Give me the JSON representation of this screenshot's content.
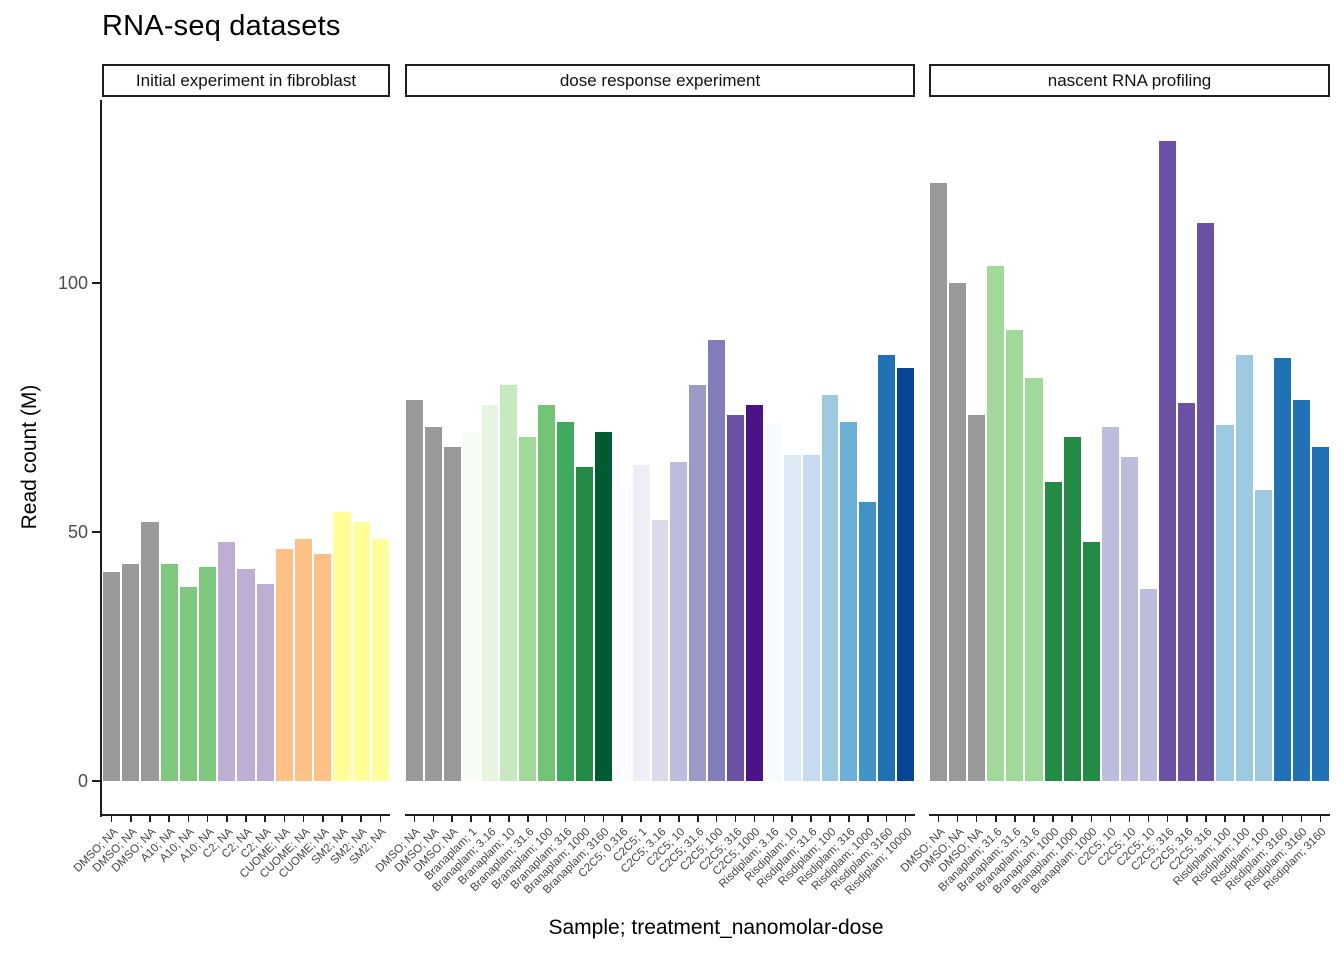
{
  "title": "RNA-seq datasets",
  "x_axis_title": "Sample; treatment_nanomolar-dose",
  "y_axis_title": "Read count (M)",
  "chart_data": {
    "type": "bar",
    "title": "RNA-seq datasets",
    "xlabel": "Sample; treatment_nanomolar-dose",
    "ylabel": "Read count (M)",
    "ylim": [
      0,
      137
    ],
    "yticks": [
      0,
      50,
      100
    ],
    "grid": "off",
    "legend": "none",
    "facets": true,
    "panels": [
      {
        "facet": "Initial experiment in fibroblast",
        "bars": [
          {
            "label": "DMSO; NA",
            "value": 42,
            "color": "#999999"
          },
          {
            "label": "DMSO; NA",
            "value": 43.5,
            "color": "#999999"
          },
          {
            "label": "DMSO; NA",
            "value": 52,
            "color": "#999999"
          },
          {
            "label": "A10; NA",
            "value": 43.5,
            "color": "#7fc97f"
          },
          {
            "label": "A10; NA",
            "value": 39,
            "color": "#7fc97f"
          },
          {
            "label": "A10; NA",
            "value": 43,
            "color": "#7fc97f"
          },
          {
            "label": "C2; NA",
            "value": 48,
            "color": "#beaed4"
          },
          {
            "label": "C2; NA",
            "value": 42.5,
            "color": "#beaed4"
          },
          {
            "label": "C2; NA",
            "value": 39.5,
            "color": "#beaed4"
          },
          {
            "label": "CUOME; NA",
            "value": 46.5,
            "color": "#fdc086"
          },
          {
            "label": "CUOME; NA",
            "value": 48.5,
            "color": "#fdc086"
          },
          {
            "label": "CUOME; NA",
            "value": 45.5,
            "color": "#fdc086"
          },
          {
            "label": "SM2; NA",
            "value": 54,
            "color": "#ffff99"
          },
          {
            "label": "SM2; NA",
            "value": 52,
            "color": "#ffff99"
          },
          {
            "label": "SM2; NA",
            "value": 48.5,
            "color": "#ffff99"
          }
        ]
      },
      {
        "facet": "dose response experiment",
        "bars": [
          {
            "label": "DMSO; NA",
            "value": 76.5,
            "color": "#999999"
          },
          {
            "label": "DMSO; NA",
            "value": 71,
            "color": "#999999"
          },
          {
            "label": "DMSO; NA",
            "value": 67,
            "color": "#999999"
          },
          {
            "label": "Branaplam; 1",
            "value": 70,
            "color": "#f7fcf5"
          },
          {
            "label": "Branaplam; 3.16",
            "value": 75.5,
            "color": "#e5f5e0"
          },
          {
            "label": "Branaplam; 10",
            "value": 79.5,
            "color": "#c7e9c0"
          },
          {
            "label": "Branaplam; 31.6",
            "value": 69,
            "color": "#a1d99b"
          },
          {
            "label": "Branaplam; 100",
            "value": 75.5,
            "color": "#74c476"
          },
          {
            "label": "Branaplam; 316",
            "value": 72,
            "color": "#41ab5d"
          },
          {
            "label": "Branaplam; 1000",
            "value": 63,
            "color": "#238b45"
          },
          {
            "label": "Branaplam; 3160",
            "value": 70,
            "color": "#005a32"
          },
          {
            "label": "C2C5; 0.316",
            "value": 59,
            "color": "#fcfbfd"
          },
          {
            "label": "C2C5; 1",
            "value": 63.5,
            "color": "#efedf5"
          },
          {
            "label": "C2C5; 3.16",
            "value": 52.5,
            "color": "#dadaeb"
          },
          {
            "label": "C2C5; 10",
            "value": 64,
            "color": "#bcbddc"
          },
          {
            "label": "C2C5; 31.6",
            "value": 79.5,
            "color": "#9e9ac8"
          },
          {
            "label": "C2C5; 100",
            "value": 88.5,
            "color": "#807dba"
          },
          {
            "label": "C2C5; 316",
            "value": 73.5,
            "color": "#6a51a3"
          },
          {
            "label": "C2C5; 1000",
            "value": 75.5,
            "color": "#4a1486"
          },
          {
            "label": "Risdiplam; 3.16",
            "value": 71.5,
            "color": "#f7fbff"
          },
          {
            "label": "Risdiplam; 10",
            "value": 65.5,
            "color": "#deebf7"
          },
          {
            "label": "Risdiplam; 31.6",
            "value": 65.5,
            "color": "#c6dbef"
          },
          {
            "label": "Risdiplam; 100",
            "value": 77.5,
            "color": "#9ecae1"
          },
          {
            "label": "Risdiplam; 316",
            "value": 72,
            "color": "#6baed6"
          },
          {
            "label": "Risdiplam; 1000",
            "value": 56,
            "color": "#4292c6"
          },
          {
            "label": "Risdiplam; 3160",
            "value": 85.5,
            "color": "#2171b5"
          },
          {
            "label": "Risdiplam; 10000",
            "value": 83,
            "color": "#084594"
          }
        ]
      },
      {
        "facet": "nascent RNA profiling",
        "bars": [
          {
            "label": "DMSO; NA",
            "value": 120,
            "color": "#999999"
          },
          {
            "label": "DMSO; NA",
            "value": 100,
            "color": "#999999"
          },
          {
            "label": "DMSO; NA",
            "value": 73.5,
            "color": "#999999"
          },
          {
            "label": "Branaplam; 31.6",
            "value": 103.5,
            "color": "#a1d99b"
          },
          {
            "label": "Branaplam; 31.6",
            "value": 90.5,
            "color": "#a1d99b"
          },
          {
            "label": "Branaplam; 31.6",
            "value": 81,
            "color": "#a1d99b"
          },
          {
            "label": "Branaplam; 1000",
            "value": 60,
            "color": "#238b45"
          },
          {
            "label": "Branaplam; 1000",
            "value": 69,
            "color": "#238b45"
          },
          {
            "label": "Branaplam; 1000",
            "value": 48,
            "color": "#238b45"
          },
          {
            "label": "C2C5; 10",
            "value": 71,
            "color": "#bcbddc"
          },
          {
            "label": "C2C5; 10",
            "value": 65,
            "color": "#bcbddc"
          },
          {
            "label": "C2C5; 10",
            "value": 38.5,
            "color": "#bcbddc"
          },
          {
            "label": "C2C5; 316",
            "value": 128.5,
            "color": "#6a51a3"
          },
          {
            "label": "C2C5; 316",
            "value": 76,
            "color": "#6a51a3"
          },
          {
            "label": "C2C5; 316",
            "value": 112,
            "color": "#6a51a3"
          },
          {
            "label": "Risdiplam; 100",
            "value": 71.5,
            "color": "#9ecae1"
          },
          {
            "label": "Risdiplam; 100",
            "value": 85.5,
            "color": "#9ecae1"
          },
          {
            "label": "Risdiplam; 100",
            "value": 58.5,
            "color": "#9ecae1"
          },
          {
            "label": "Risdiplam; 3160",
            "value": 85,
            "color": "#2171b5"
          },
          {
            "label": "Risdiplam; 3160",
            "value": 76.5,
            "color": "#2171b5"
          },
          {
            "label": "Risdiplam; 3160",
            "value": 67,
            "color": "#2171b5"
          }
        ]
      }
    ],
    "colors": {
      "axis_line": "#1f1f1f",
      "tick_text": "#4d4d4d",
      "title_text": "#000000"
    }
  }
}
